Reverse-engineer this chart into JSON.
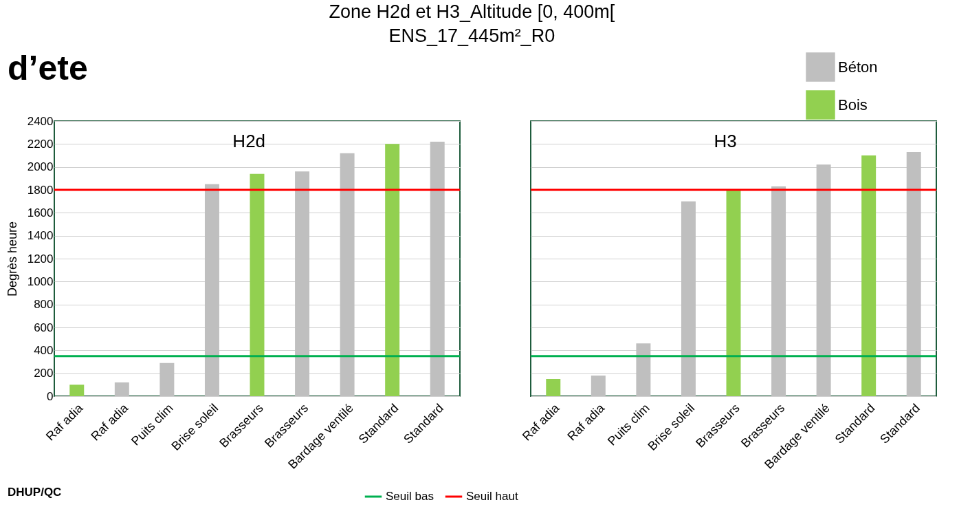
{
  "chart_data": [
    {
      "type": "bar",
      "title": "Zone H2d et H3_Altitude [0, 400m[",
      "subtitle": "ENS_17_445m²_R0",
      "ylabel": "Degrès heure",
      "annotations": [
        "H2d",
        "d’ete",
        "DHUP/QC"
      ],
      "categories": [
        "Raf adia",
        "Raf adia",
        "Puits clim",
        "Brise soleil",
        "Brasseurs",
        "Brasseurs",
        "Bardage ventilé",
        "Standard",
        "Standard"
      ],
      "series": [
        {
          "color": "#bfbfbf",
          "values": [
            null,
            120,
            290,
            1850,
            null,
            1960,
            2120,
            null,
            2220
          ]
        },
        {
          "color": "#92d050",
          "values": [
            100,
            null,
            null,
            null,
            1940,
            null,
            null,
            2200,
            null
          ]
        }
      ],
      "ylim": [
        0,
        2400
      ],
      "yticks": [
        0,
        200,
        400,
        600,
        800,
        1000,
        1200,
        1400,
        1600,
        1800,
        2000,
        2200,
        2400
      ],
      "grid": "y",
      "legend": "bottom right",
      "ref_lines": [
        {
          "axis": "y",
          "value": 350,
          "label": "Seuil bas",
          "color": "#00b050"
        },
        {
          "axis": "y",
          "value": 1800,
          "label": "Seuil haut",
          "color": "#ff0000"
        }
      ]
    },
    {
      "type": "bar",
      "annotations": [
        "H3"
      ],
      "categories": [
        "Raf adia",
        "Raf adia",
        "Puits clim",
        "Brise soleil",
        "Brasseurs",
        "Brasseurs",
        "Bardage ventilé",
        "Standard",
        "Standard"
      ],
      "series": [
        {
          "name": "Béton",
          "color": "#bfbfbf",
          "values": [
            null,
            180,
            460,
            1700,
            null,
            1830,
            2020,
            null,
            2130
          ]
        },
        {
          "name": "Bois",
          "color": "#92d050",
          "values": [
            150,
            null,
            null,
            null,
            1800,
            null,
            null,
            2100,
            null
          ]
        }
      ],
      "ylim": [
        0,
        2400
      ],
      "yticks": [
        0,
        200,
        400,
        600,
        800,
        1000,
        1200,
        1400,
        1600,
        1800,
        2000,
        2200,
        2400
      ],
      "grid": "y",
      "legend": "top right",
      "tick_labels": "x",
      "ref_lines": [
        {
          "axis": "y",
          "value": 350,
          "color": "#00b050"
        },
        {
          "axis": "y",
          "value": 1800,
          "color": "#ff0000"
        }
      ]
    }
  ]
}
